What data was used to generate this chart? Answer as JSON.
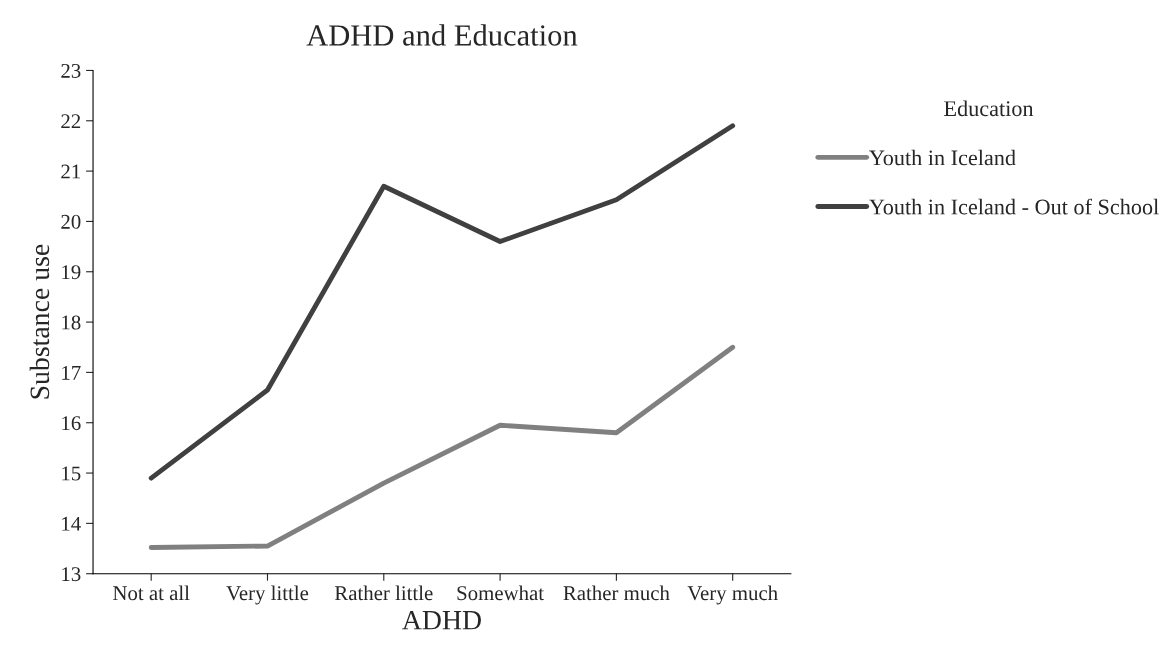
{
  "chart_data": {
    "type": "line",
    "title": "ADHD and Education",
    "xlabel": "ADHD",
    "ylabel": "Substance use",
    "legend_title": "Education",
    "categories": [
      "Not at all",
      "Very little",
      "Rather little",
      "Somewhat",
      "Rather much",
      "Very much"
    ],
    "series": [
      {
        "name": "Youth in Iceland",
        "color": "#808080",
        "values": [
          13.52,
          13.55,
          14.8,
          15.95,
          15.8,
          17.5
        ]
      },
      {
        "name": "Youth in Iceland - Out of School",
        "color": "#404040",
        "values": [
          14.9,
          16.65,
          20.7,
          19.6,
          20.43,
          21.9
        ]
      }
    ],
    "ylim": [
      13,
      23
    ],
    "yticks": [
      13,
      14,
      15,
      16,
      17,
      18,
      19,
      20,
      21,
      22,
      23
    ],
    "grid": false,
    "legend": "right",
    "marker": "none",
    "line_style": "solid"
  }
}
